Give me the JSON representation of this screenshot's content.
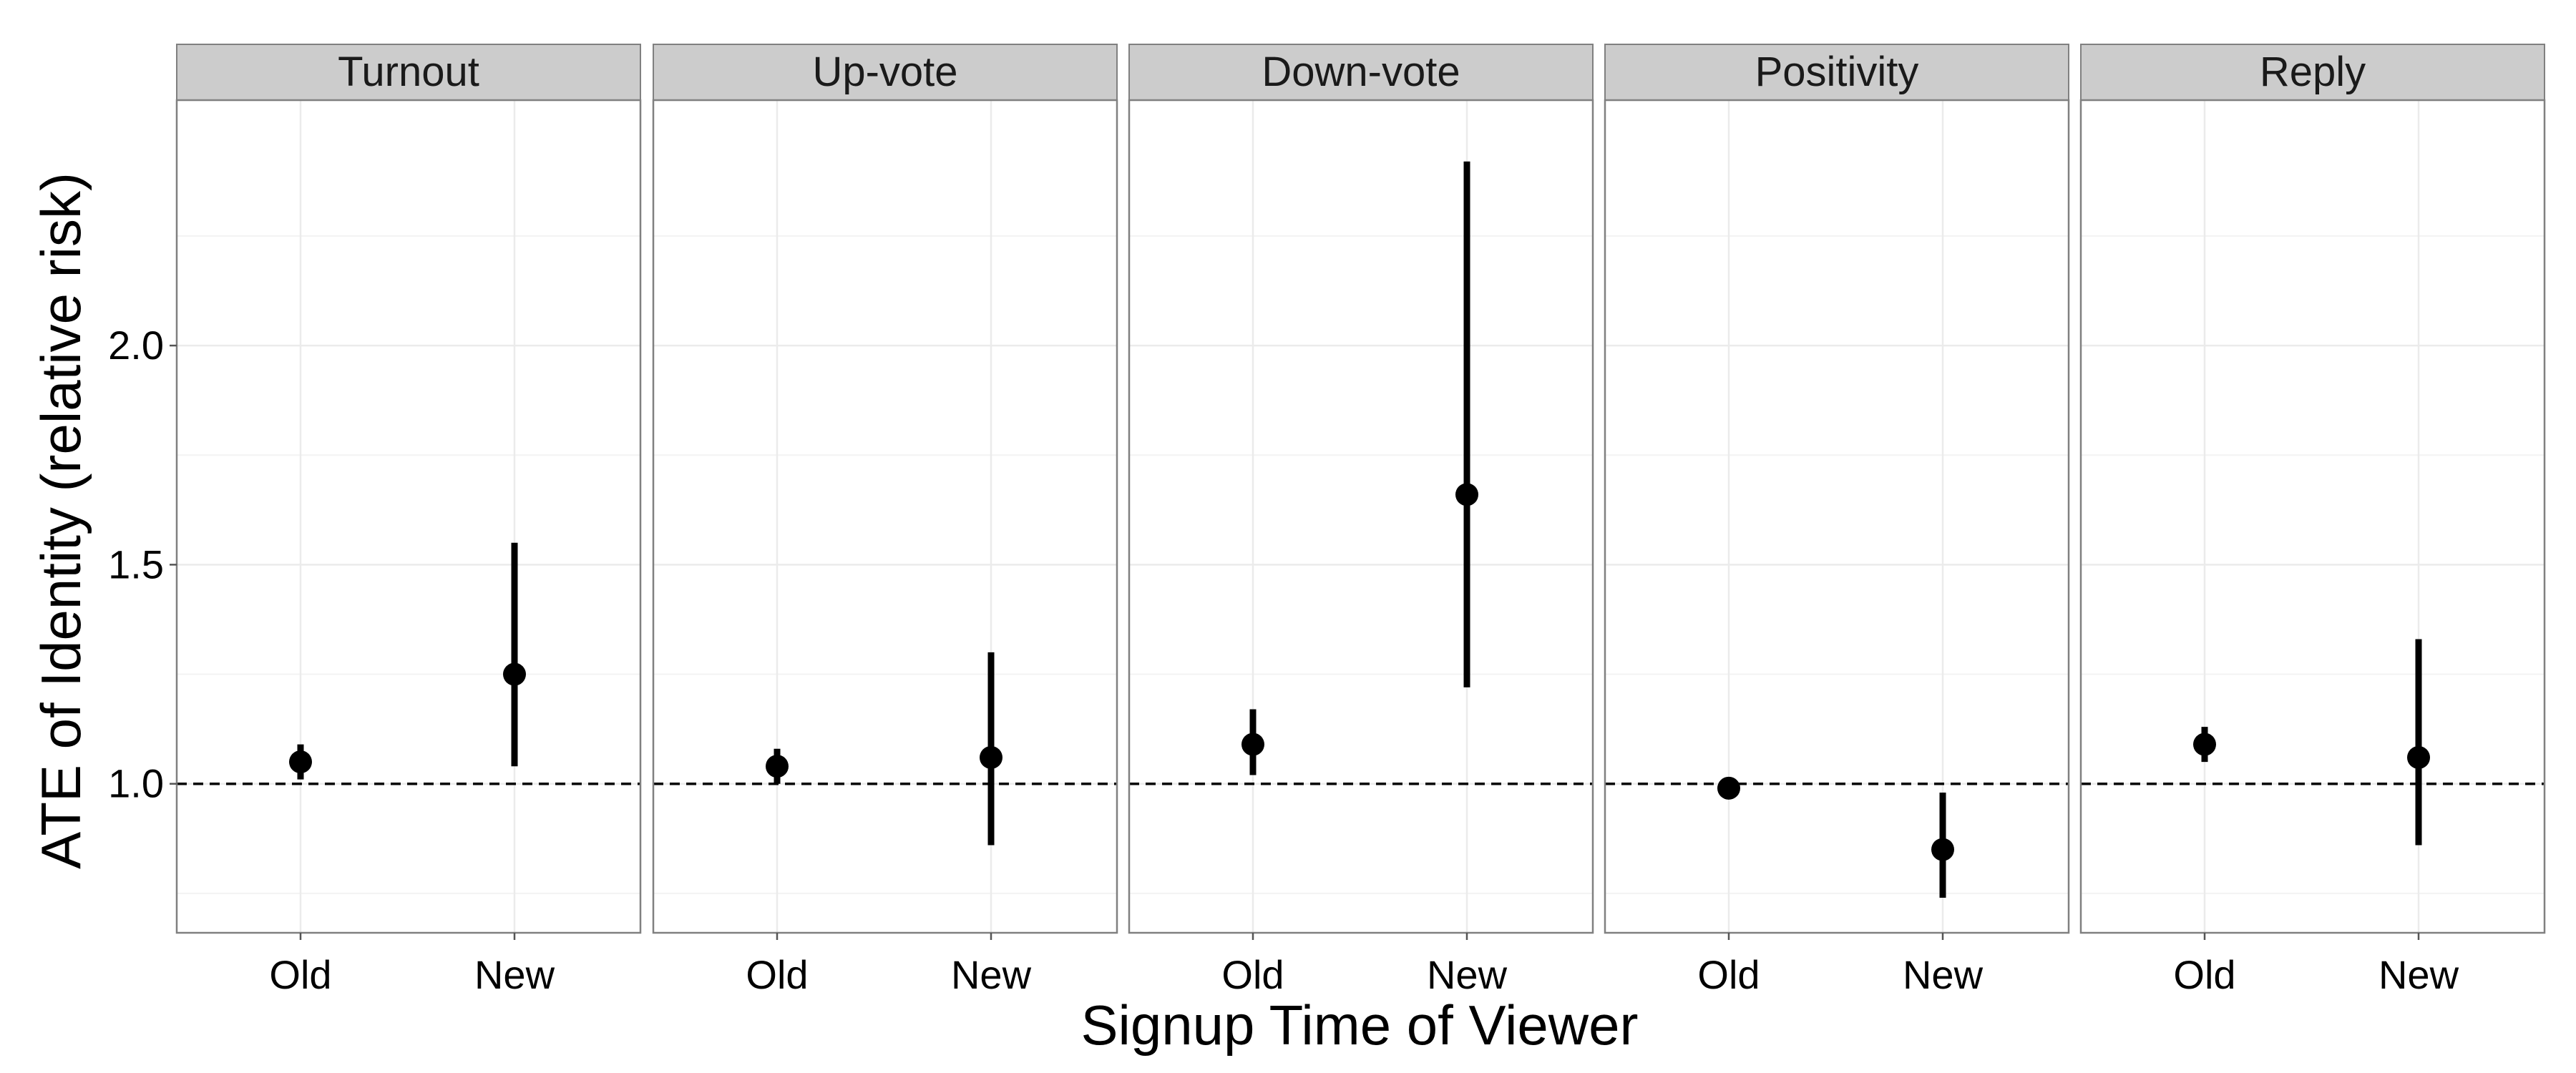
{
  "chart_data": {
    "type": "scatter",
    "subtype": "point-range faceted",
    "xlabel": "Signup Time of Viewer",
    "ylabel": "ATE of Identity (relative risk)",
    "categories": [
      "Old",
      "New"
    ],
    "yticks": [
      1.0,
      1.5,
      2.0
    ],
    "ytick_labels": [
      "1.0",
      "1.5",
      "2.0"
    ],
    "ylim": [
      0.66,
      2.56
    ],
    "reference_line": {
      "y": 1.0,
      "style": "dashed"
    },
    "grid": true,
    "colors": {
      "strip_fill": "#cccccc",
      "panel_border": "#808080",
      "grid": "#ebebeb",
      "point": "#000000",
      "reference_line": "#000000"
    },
    "panels": [
      {
        "title": "Turnout",
        "points": [
          {
            "x": "Old",
            "y": 1.05,
            "ymin": 1.01,
            "ymax": 1.09
          },
          {
            "x": "New",
            "y": 1.25,
            "ymin": 1.04,
            "ymax": 1.55
          }
        ]
      },
      {
        "title": "Up-vote",
        "points": [
          {
            "x": "Old",
            "y": 1.04,
            "ymin": 1.0,
            "ymax": 1.08
          },
          {
            "x": "New",
            "y": 1.06,
            "ymin": 0.86,
            "ymax": 1.3
          }
        ]
      },
      {
        "title": "Down-vote",
        "points": [
          {
            "x": "Old",
            "y": 1.09,
            "ymin": 1.02,
            "ymax": 1.17
          },
          {
            "x": "New",
            "y": 1.66,
            "ymin": 1.22,
            "ymax": 2.42
          }
        ]
      },
      {
        "title": "Positivity",
        "points": [
          {
            "x": "Old",
            "y": 0.99,
            "ymin": 0.97,
            "ymax": 1.01
          },
          {
            "x": "New",
            "y": 0.85,
            "ymin": 0.74,
            "ymax": 0.98
          }
        ]
      },
      {
        "title": "Reply",
        "points": [
          {
            "x": "Old",
            "y": 1.09,
            "ymin": 1.05,
            "ymax": 1.13
          },
          {
            "x": "New",
            "y": 1.06,
            "ymin": 0.86,
            "ymax": 1.33
          }
        ]
      }
    ]
  }
}
